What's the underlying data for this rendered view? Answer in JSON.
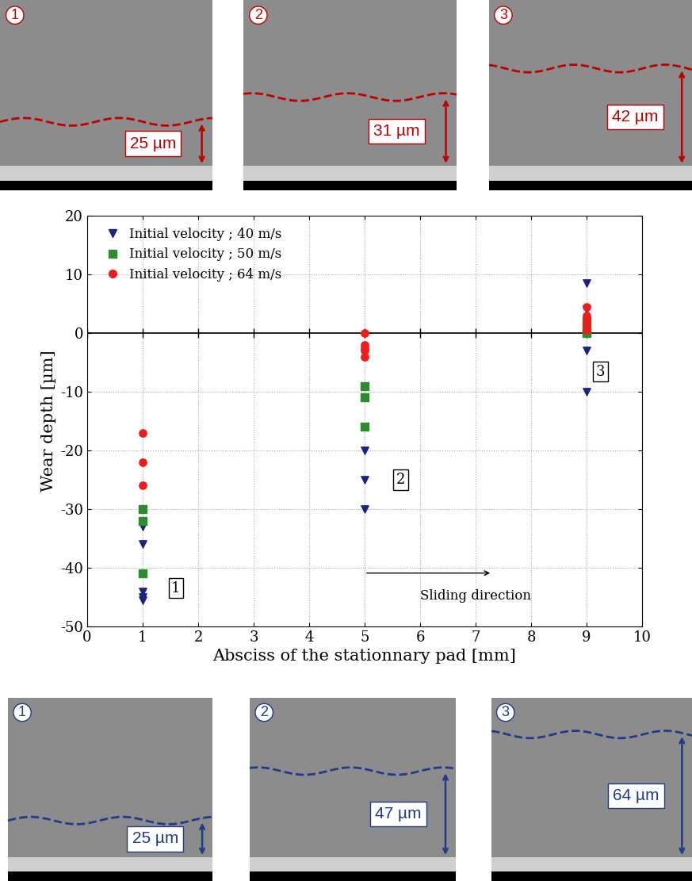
{
  "chart_data": {
    "type": "scatter",
    "xlabel": "Absciss of the stationnary pad [mm]",
    "ylabel": "Wear depth [µm]",
    "xlim": [
      0,
      10
    ],
    "ylim": [
      -50,
      20
    ],
    "xticks": [
      0,
      1,
      2,
      3,
      4,
      5,
      6,
      7,
      8,
      9,
      10
    ],
    "yticks": [
      -50,
      -40,
      -30,
      -20,
      -10,
      0,
      10,
      20
    ],
    "grid": true,
    "legend": "upper left",
    "series": [
      {
        "name": "Initial velocity ; 40 m/s",
        "color": "#1a237e",
        "marker": "triangle_down",
        "x": [
          1,
          1,
          1,
          1,
          1,
          5,
          5,
          5,
          9,
          9,
          9,
          9
        ],
        "values": [
          -33,
          -36,
          -44,
          -45,
          -45.5,
          -20,
          -25,
          -30,
          8.5,
          4,
          -3,
          -10
        ]
      },
      {
        "name": "Initial velocity ; 50 m/s",
        "color": "#2e8b2e",
        "marker": "square",
        "x": [
          1,
          1,
          1,
          5,
          5,
          5,
          9,
          9,
          9
        ],
        "values": [
          -30,
          -32,
          -41,
          -9,
          -11,
          -16,
          0,
          1,
          2
        ]
      },
      {
        "name": "Initial velocity ; 64 m/s",
        "color": "#ee1c1c",
        "marker": "circle",
        "x": [
          1,
          1,
          1,
          5,
          5,
          5,
          5,
          5,
          9,
          9,
          9,
          9,
          9
        ],
        "values": [
          -17,
          -22,
          -26,
          0,
          -2,
          -2.5,
          -3,
          -4,
          4.5,
          3,
          2,
          1,
          0.5
        ]
      }
    ],
    "annotations": [
      {
        "text": "1",
        "box": true
      },
      {
        "text": "2",
        "box": true
      },
      {
        "text": "3",
        "box": true
      },
      {
        "text": "Sliding direction",
        "box": false
      }
    ]
  },
  "micrographs": {
    "top": {
      "color": "#c00000",
      "panels": [
        {
          "number": "1",
          "thickness": "25 µm"
        },
        {
          "number": "2",
          "thickness": "31 µm"
        },
        {
          "number": "3",
          "thickness": "42 µm"
        }
      ]
    },
    "bottom": {
      "color": "#1f3c88",
      "panels": [
        {
          "number": "1",
          "thickness": "25 µm"
        },
        {
          "number": "2",
          "thickness": "47 µm"
        },
        {
          "number": "3",
          "thickness": "64 µm"
        }
      ]
    }
  }
}
